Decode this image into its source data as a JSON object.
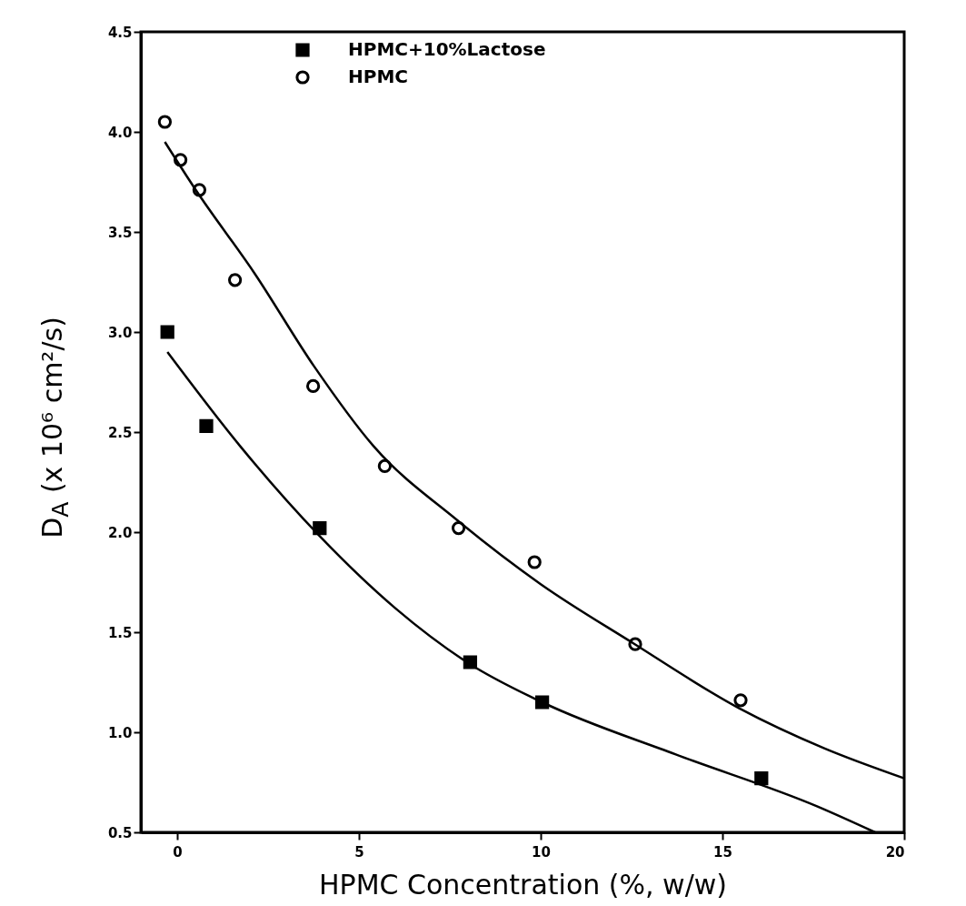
{
  "chart_data": {
    "type": "scatter",
    "xlabel": "HPMC Concentration (%, w/w)",
    "ylabel": "D$_{A}$ (x 10⁶ cm²/s)",
    "xlim": [
      -1,
      20
    ],
    "xticks": [
      0,
      5,
      10,
      15,
      20
    ],
    "ylim": [
      0.5,
      4.5
    ],
    "yticks": [
      0.5,
      {
        "value": 1,
        "label": "1.0"
      },
      1.5,
      {
        "value": 2,
        "label": "2.0"
      },
      2.5,
      {
        "value": 3,
        "label": "3.0"
      },
      3.5,
      {
        "value": 4,
        "label": "4.0"
      },
      4.5
    ],
    "legend": "top",
    "grid": false,
    "series": [
      {
        "name": "HPMC+10%Lactose",
        "marker": "square",
        "color": "#000000",
        "x": [
          -0.27,
          0.8,
          3.92,
          8.06,
          10.04,
          16.07
        ],
        "values": [
          3.0,
          2.53,
          2.02,
          1.35,
          1.15,
          0.77
        ]
      },
      {
        "name": "HPMC",
        "marker": "circle",
        "color": "#000000",
        "x": [
          -0.34,
          0.09,
          0.61,
          1.59,
          3.74,
          5.71,
          7.74,
          9.83,
          12.6,
          15.5
        ],
        "values": [
          4.05,
          3.86,
          3.71,
          3.26,
          2.73,
          2.33,
          2.02,
          1.85,
          1.44,
          1.16
        ]
      },
      {
        "type": "line",
        "marker": "none",
        "color": "#000000",
        "x": [
          -0.34,
          0.51,
          2.14,
          3.76,
          5.4,
          7.7,
          10,
          12.5,
          15.46,
          17.8,
          20
        ],
        "values": [
          3.95,
          3.71,
          3.29,
          2.83,
          2.43,
          2.06,
          1.74,
          1.45,
          1.12,
          0.92,
          0.77
        ]
      },
      {
        "type": "line",
        "marker": "none",
        "color": "#000000",
        "x": [
          -0.27,
          1.73,
          3.92,
          6,
          8.06,
          10.04,
          13.7,
          17.6,
          19.2
        ],
        "values": [
          2.9,
          2.43,
          1.98,
          1.62,
          1.34,
          1.15,
          0.89,
          0.63,
          0.5
        ]
      }
    ]
  }
}
